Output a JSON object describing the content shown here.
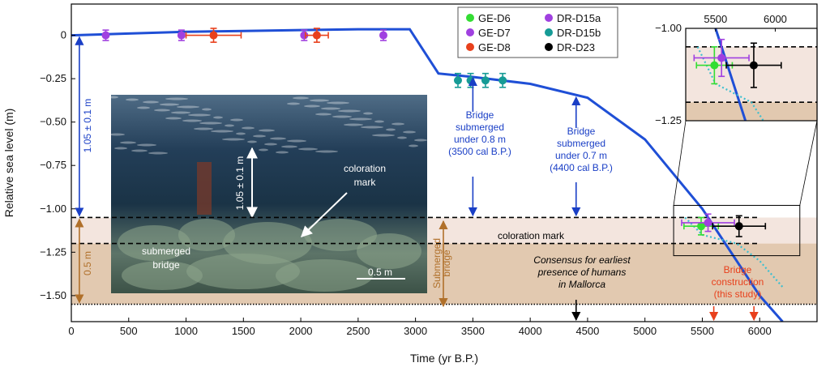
{
  "chart_data": {
    "type": "line",
    "xlabel": "Time (yr B.P.)",
    "ylabel": "Relative sea level (m)",
    "xlim": [
      0,
      6500
    ],
    "ylim": [
      -1.65,
      0.18
    ],
    "x_ticks": [
      0,
      500,
      1000,
      1500,
      2000,
      2500,
      3000,
      3500,
      4000,
      4500,
      5000,
      5500,
      6000
    ],
    "y_ticks": [
      0,
      -0.25,
      -0.5,
      -0.75,
      -1.0,
      -1.25,
      -1.5
    ],
    "y_tick_labels": [
      "0",
      "−0.25",
      "−0.50",
      "−0.75",
      "−1.00",
      "−1.25",
      "−1.50"
    ],
    "grid": false,
    "legend_placement": "top-right",
    "series": [
      {
        "kind": "line",
        "color": "#1f4fd6",
        "x": [
          0,
          500,
          1000,
          1500,
          2000,
          2500,
          2700,
          2950,
          3200,
          3500,
          4000,
          4500,
          5000,
          5500,
          6000,
          6200
        ],
        "y": [
          0,
          0.01,
          0.02,
          0.025,
          0.03,
          0.035,
          0.035,
          0.035,
          -0.22,
          -0.24,
          -0.28,
          -0.36,
          -0.6,
          -1.0,
          -1.5,
          -1.65
        ]
      },
      {
        "kind": "dotted-line",
        "color": "#3bbfd0",
        "x": [
          5350,
          5500,
          5800,
          6000,
          6200
        ],
        "y": [
          -1.05,
          -1.15,
          -1.2,
          -1.3,
          -1.45
        ]
      },
      {
        "name": "GE-D6",
        "color": "#33dd33",
        "marker": "circle",
        "points": [
          {
            "x": 5490,
            "y": -1.1,
            "xerr": 150,
            "yerr": 0.05
          }
        ]
      },
      {
        "name": "GE-D7",
        "color": "#a040e0",
        "marker": "circle",
        "points": [
          {
            "x": 300,
            "y": 0,
            "xerr": 0,
            "yerr": 0.03
          },
          {
            "x": 960,
            "y": 0,
            "xerr": 0,
            "yerr": 0.03
          },
          {
            "x": 2030,
            "y": 0,
            "xerr": 0,
            "yerr": 0.03
          },
          {
            "x": 2720,
            "y": 0,
            "xerr": 0,
            "yerr": 0.03
          }
        ]
      },
      {
        "name": "GE-D8",
        "color": "#e8401c",
        "marker": "circle",
        "points": [
          {
            "x": 1240,
            "y": 0,
            "xerr": 240,
            "yerr": 0.04
          },
          {
            "x": 2140,
            "y": 0,
            "xerr": 100,
            "yerr": 0.04
          }
        ]
      },
      {
        "name": "DR-D15a",
        "color": "#a040e0",
        "marker": "circle",
        "points": [
          {
            "x": 5550,
            "y": -1.08,
            "xerr": 230,
            "yerr": 0.05
          }
        ]
      },
      {
        "name": "DR-D15b",
        "color": "#169b96",
        "marker": "circle",
        "points": [
          {
            "x": 3370,
            "y": -0.26,
            "xerr": 0,
            "yerr": 0.04
          },
          {
            "x": 3480,
            "y": -0.26,
            "xerr": 0,
            "yerr": 0.04
          },
          {
            "x": 3610,
            "y": -0.26,
            "xerr": 0,
            "yerr": 0.04
          },
          {
            "x": 3760,
            "y": -0.26,
            "xerr": 0,
            "yerr": 0.04
          }
        ]
      },
      {
        "name": "DR-D23",
        "color": "#000000",
        "marker": "circle",
        "points": [
          {
            "x": 5820,
            "y": -1.1,
            "xerr": 230,
            "yerr": 0.06
          }
        ]
      }
    ],
    "horizontal_lines": [
      {
        "y": -1.05,
        "style": "dashed",
        "color": "#000000",
        "x_range": [
          0,
          6000
        ]
      },
      {
        "y": -1.2,
        "style": "dashed",
        "color": "#000000",
        "x_range": [
          0,
          6000
        ]
      },
      {
        "y": -1.55,
        "style": "dotted",
        "color": "#000000",
        "x_range": [
          0,
          6500
        ]
      }
    ],
    "bands": [
      {
        "y_range": [
          -1.05,
          -1.2
        ],
        "color": "#f3e5de"
      },
      {
        "y_range": [
          -1.2,
          -1.55
        ],
        "color": "#e2c9b0"
      }
    ],
    "inset": {
      "xlim": [
        5250,
        6350
      ],
      "ylim": [
        -1.25,
        -1.0
      ],
      "x_ticks": [
        5500,
        6000
      ],
      "x_tick_labels": [
        "5500",
        "6000"
      ],
      "y_ticks": [
        -1.0,
        -1.25
      ],
      "y_tick_labels": [
        "−1.00",
        "−1.25"
      ]
    },
    "annotations": {
      "bracket_top_label": "1.05 ± 0.1 m",
      "bracket_bottom_label": "0.5 m",
      "photo_vertical_label": "1.05 ± 0.1 m",
      "photo_coloration": "coloration\nmark",
      "photo_bridge": "submerged\nbridge",
      "photo_scale": "0.5 m",
      "bridge_08": "Bridge\nsubmerged\nunder 0.8 m\n(3500 cal B.P.)",
      "bridge_07": "Bridge\nsubmerged\nunder 0.7 m\n(4400 cal B.P.)",
      "coloration_mark": "coloration mark",
      "submerged_bridge_vertical": "Submerged\nbridge",
      "consensus": "Consensus for earliest\npresence of humans\nin Mallorca",
      "bridge_construction": "Bridge\nconstruction\n(this study)"
    },
    "colors": {
      "blue_annotation": "#1a3fc6",
      "brown_annotation": "#b0702a",
      "orange_annotation": "#e8401c"
    }
  }
}
